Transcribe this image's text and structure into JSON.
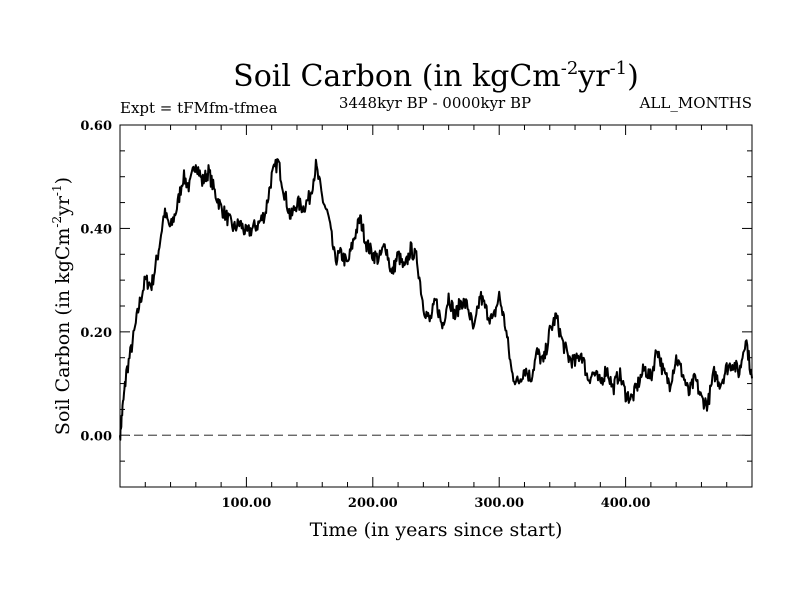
{
  "chart_data": {
    "type": "line",
    "title": "Soil Carbon (in kgCm",
    "title_units": [
      "-2",
      "yr",
      "-1",
      ")"
    ],
    "subtitle_left": "Expt = tFMfm-tfmea",
    "subtitle_center": "3448kyr BP - 0000kyr BP",
    "subtitle_right": "ALL_MONTHS",
    "xlabel": "Time (in years since start)",
    "ylabel": "Soil Carbon (in kgCm",
    "ylabel_units": [
      "-2",
      "yr",
      "-1",
      ")"
    ],
    "xlim": [
      0,
      500
    ],
    "ylim": [
      -0.1,
      0.6
    ],
    "x_ticks": [
      100,
      200,
      300,
      400
    ],
    "x_tick_labels": [
      "100.00",
      "200.00",
      "300.00",
      "400.00"
    ],
    "y_ticks": [
      0.0,
      0.2,
      0.4,
      0.6
    ],
    "y_tick_labels": [
      "0.00",
      "0.20",
      "0.40",
      "0.60"
    ],
    "reference_line": {
      "y": 0.0,
      "style": "dashed"
    },
    "series": [
      {
        "name": "Soil Carbon",
        "x": [
          0,
          2,
          5,
          10,
          15,
          20,
          25,
          30,
          35,
          40,
          45,
          50,
          55,
          60,
          65,
          70,
          75,
          80,
          85,
          90,
          95,
          100,
          105,
          110,
          115,
          120,
          125,
          130,
          135,
          140,
          145,
          150,
          155,
          160,
          165,
          170,
          175,
          180,
          185,
          190,
          195,
          200,
          205,
          210,
          215,
          220,
          225,
          230,
          235,
          240,
          245,
          250,
          255,
          260,
          265,
          270,
          275,
          280,
          285,
          290,
          295,
          300,
          305,
          310,
          315,
          320,
          325,
          330,
          335,
          340,
          345,
          350,
          355,
          360,
          365,
          370,
          375,
          380,
          385,
          390,
          395,
          400,
          405,
          410,
          415,
          420,
          425,
          430,
          435,
          440,
          445,
          450,
          455,
          460,
          465,
          470,
          475,
          480,
          485,
          490,
          495,
          500
        ],
        "values": [
          0.0,
          0.05,
          0.12,
          0.18,
          0.25,
          0.3,
          0.29,
          0.35,
          0.43,
          0.4,
          0.44,
          0.5,
          0.48,
          0.53,
          0.49,
          0.51,
          0.47,
          0.44,
          0.42,
          0.4,
          0.41,
          0.39,
          0.4,
          0.41,
          0.43,
          0.5,
          0.53,
          0.47,
          0.42,
          0.45,
          0.44,
          0.46,
          0.52,
          0.46,
          0.42,
          0.34,
          0.35,
          0.33,
          0.38,
          0.42,
          0.37,
          0.35,
          0.34,
          0.37,
          0.31,
          0.35,
          0.32,
          0.36,
          0.34,
          0.25,
          0.22,
          0.26,
          0.21,
          0.27,
          0.23,
          0.26,
          0.25,
          0.2,
          0.27,
          0.24,
          0.22,
          0.27,
          0.21,
          0.12,
          0.1,
          0.13,
          0.11,
          0.16,
          0.14,
          0.2,
          0.23,
          0.18,
          0.15,
          0.14,
          0.16,
          0.11,
          0.12,
          0.1,
          0.13,
          0.09,
          0.12,
          0.08,
          0.07,
          0.1,
          0.13,
          0.11,
          0.17,
          0.12,
          0.1,
          0.15,
          0.12,
          0.08,
          0.11,
          0.07,
          0.06,
          0.12,
          0.1,
          0.13,
          0.14,
          0.12,
          0.19,
          0.11
        ]
      }
    ]
  }
}
